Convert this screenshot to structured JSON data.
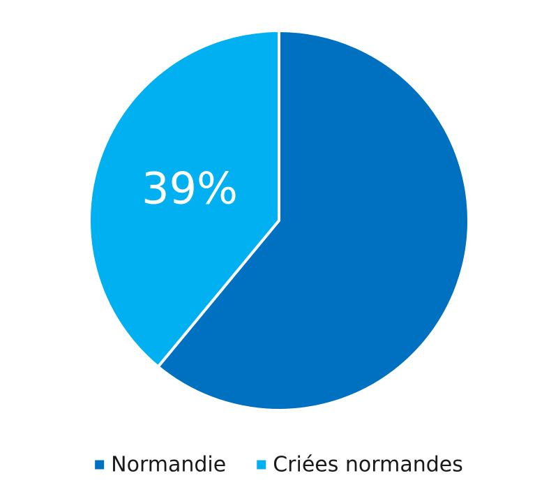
{
  "chart_data": {
    "type": "pie",
    "slices": [
      {
        "name": "Normandie",
        "value": 61,
        "label": "",
        "color": "#0070C0"
      },
      {
        "name": "Criées normandes",
        "value": 39,
        "label": "39%",
        "color": "#00B0F0"
      }
    ],
    "start_angle_deg": 0,
    "direction": "clockwise",
    "legend_position": "bottom",
    "slice_border_color": "#ffffff"
  }
}
